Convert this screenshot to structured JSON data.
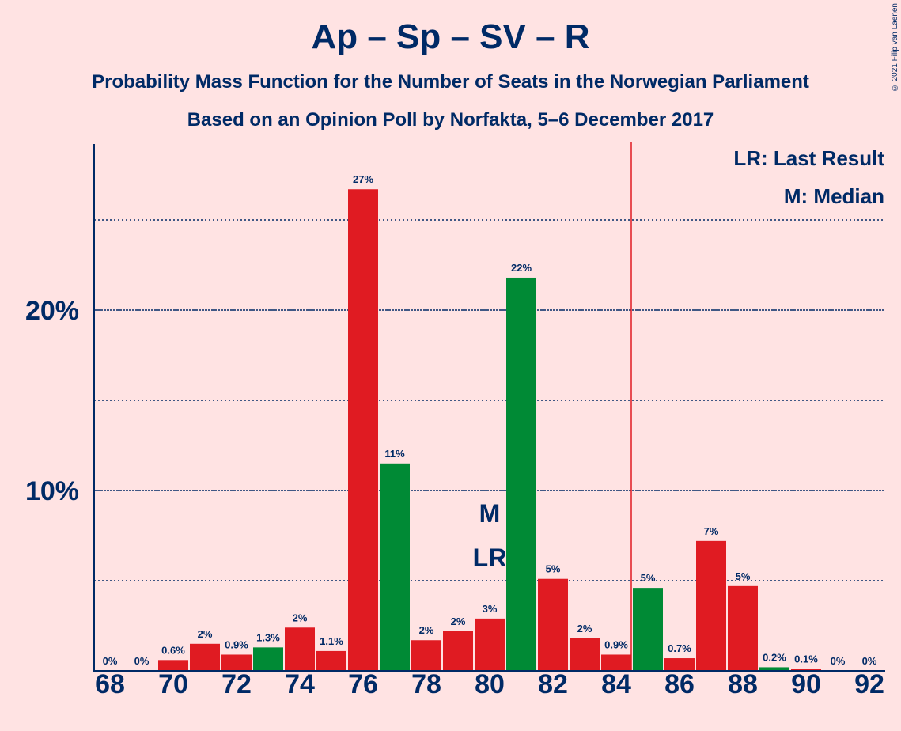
{
  "header": {
    "title": "Ap – Sp – SV – R",
    "subtitle1": "Probability Mass Function for the Number of Seats in the Norwegian Parliament",
    "subtitle2": "Based on an Opinion Poll by Norfakta, 5–6 December 2017",
    "copyright": "© 2021 Filip van Laenen"
  },
  "legend": {
    "last_result": "LR: Last Result",
    "median": "M: Median"
  },
  "colors": {
    "background": "#ffe3e3",
    "red": "#e01b22",
    "green": "#008a35",
    "text": "#002a66",
    "majority_line": "#e01b22"
  },
  "chart_data": {
    "type": "bar",
    "title": "Ap – Sp – SV – R",
    "xlabel": "",
    "ylabel": "",
    "ylim": [
      0,
      29
    ],
    "x_ticks": [
      68,
      70,
      72,
      74,
      76,
      78,
      80,
      82,
      84,
      86,
      88,
      90,
      92
    ],
    "y_ticks": [
      {
        "value": 10,
        "label": "10%"
      },
      {
        "value": 20,
        "label": "20%"
      }
    ],
    "dotted_gridlines": [
      5,
      15,
      25
    ],
    "majority_line_after_seat": 84,
    "median_seat": 80,
    "last_result_seat": 80,
    "median_marker": "M",
    "last_result_marker": "LR",
    "categories": [
      68,
      69,
      70,
      71,
      72,
      73,
      74,
      75,
      76,
      77,
      78,
      79,
      80,
      81,
      82,
      83,
      84,
      85,
      86,
      87,
      88,
      89,
      90,
      91,
      92
    ],
    "values": [
      0,
      0,
      0.6,
      1.5,
      0.9,
      1.3,
      2.4,
      1.1,
      26.7,
      11.5,
      1.7,
      2.2,
      2.9,
      21.8,
      5.1,
      1.8,
      0.9,
      4.6,
      0.7,
      7.2,
      4.7,
      0.2,
      0.1,
      0,
      0
    ],
    "labels": [
      "0%",
      "0%",
      "0.6%",
      "2%",
      "0.9%",
      "1.3%",
      "2%",
      "1.1%",
      "27%",
      "11%",
      "2%",
      "2%",
      "3%",
      "22%",
      "5%",
      "2%",
      "0.9%",
      "5%",
      "0.7%",
      "7%",
      "5%",
      "0.2%",
      "0.1%",
      "0%",
      "0%"
    ],
    "bar_colors": [
      "red",
      "red",
      "red",
      "red",
      "red",
      "green",
      "red",
      "red",
      "red",
      "green",
      "red",
      "red",
      "red",
      "green",
      "red",
      "red",
      "red",
      "green",
      "red",
      "red",
      "red",
      "green",
      "red",
      "red",
      "red"
    ]
  }
}
